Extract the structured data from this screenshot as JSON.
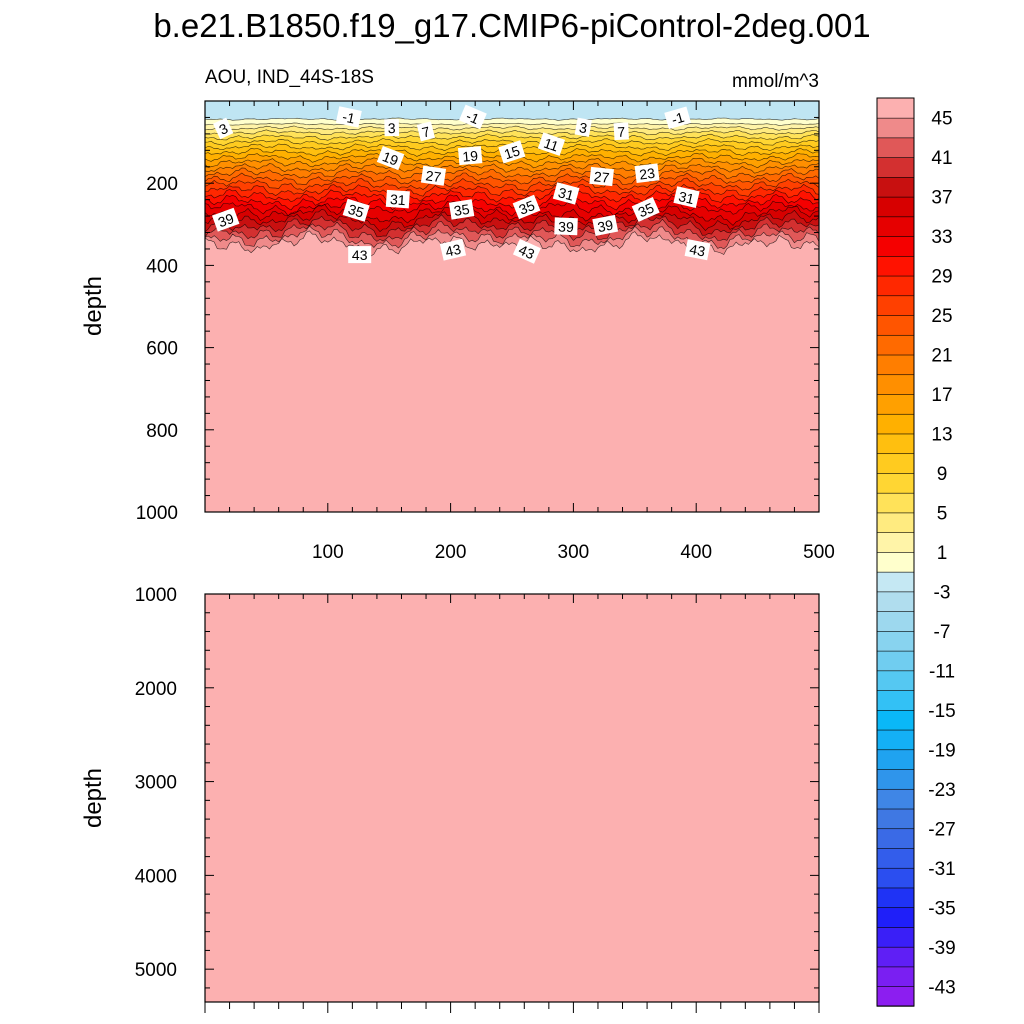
{
  "title": "b.e21.B1850.f19_g17.CMIP6-piControl-2deg.001",
  "chart_data": {
    "type": "contour",
    "variable": "AOU",
    "region": "IND_44S-18S",
    "left_string": "AOU, IND_44S-18S",
    "units": "mmol/m^3",
    "top_panel": {
      "xlabel": "",
      "ylabel": "depth",
      "xlim": [
        0,
        500
      ],
      "ylim": [
        1000,
        0
      ],
      "xticks": [
        100,
        200,
        300,
        400,
        500
      ],
      "yticks": [
        200,
        400,
        600,
        800,
        1000
      ],
      "contour_labels": [
        {
          "text": "3",
          "x": 15,
          "y": 68
        },
        {
          "text": "-1",
          "x": 117,
          "y": 40
        },
        {
          "text": "3",
          "x": 152,
          "y": 66
        },
        {
          "text": "7",
          "x": 180,
          "y": 75
        },
        {
          "text": "-1",
          "x": 218,
          "y": 40
        },
        {
          "text": "3",
          "x": 308,
          "y": 65
        },
        {
          "text": "7",
          "x": 339,
          "y": 75
        },
        {
          "text": "-1",
          "x": 385,
          "y": 42
        },
        {
          "text": "19",
          "x": 151,
          "y": 140
        },
        {
          "text": "27",
          "x": 186,
          "y": 183
        },
        {
          "text": "19",
          "x": 216,
          "y": 134
        },
        {
          "text": "15",
          "x": 250,
          "y": 125
        },
        {
          "text": "11",
          "x": 282,
          "y": 106
        },
        {
          "text": "27",
          "x": 323,
          "y": 185
        },
        {
          "text": "23",
          "x": 360,
          "y": 177
        },
        {
          "text": "39",
          "x": 17,
          "y": 290
        },
        {
          "text": "35",
          "x": 123,
          "y": 267
        },
        {
          "text": "31",
          "x": 157,
          "y": 240
        },
        {
          "text": "35",
          "x": 209,
          "y": 265
        },
        {
          "text": "35",
          "x": 262,
          "y": 259
        },
        {
          "text": "31",
          "x": 294,
          "y": 226
        },
        {
          "text": "39",
          "x": 294,
          "y": 306
        },
        {
          "text": "39",
          "x": 326,
          "y": 304
        },
        {
          "text": "35",
          "x": 359,
          "y": 265
        },
        {
          "text": "31",
          "x": 392,
          "y": 235
        },
        {
          "text": "43",
          "x": 126,
          "y": 375
        },
        {
          "text": "43",
          "x": 202,
          "y": 363
        },
        {
          "text": "43",
          "x": 262,
          "y": 367
        },
        {
          "text": "43",
          "x": 401,
          "y": 363
        }
      ]
    },
    "bottom_panel": {
      "ylabel": "depth",
      "xlim": [
        0,
        500
      ],
      "ylim": [
        5350,
        1000
      ],
      "yticks": [
        1000,
        2000,
        3000,
        4000,
        5000
      ]
    },
    "colorbar": {
      "orientation": "vertical",
      "levels": [
        -45,
        -43,
        -41,
        -39,
        -37,
        -35,
        -33,
        -31,
        -29,
        -27,
        -25,
        -23,
        -21,
        -19,
        -17,
        -15,
        -13,
        -11,
        -9,
        -7,
        -5,
        -3,
        -1,
        1,
        3,
        5,
        7,
        9,
        11,
        13,
        15,
        17,
        19,
        21,
        23,
        25,
        27,
        29,
        31,
        33,
        35,
        37,
        39,
        41,
        43,
        45
      ],
      "tick_labels": [
        "-43",
        "-39",
        "-35",
        "-31",
        "-27",
        "-23",
        "-19",
        "-15",
        "-11",
        "-7",
        "-3",
        "1",
        "5",
        "9",
        "13",
        "17",
        "21",
        "25",
        "29",
        "33",
        "37",
        "41",
        "45"
      ],
      "colors": [
        "#8c1ef0",
        "#7a1ff2",
        "#5f1ff5",
        "#3a1ff7",
        "#1f1ff9",
        "#1f33f5",
        "#2b4ef0",
        "#335deb",
        "#3a6ae6",
        "#3f78e3",
        "#3f86e6",
        "#2f95eb",
        "#1fa3f0",
        "#14b0f5",
        "#0ab8f7",
        "#33c1f5",
        "#55c8f2",
        "#70cdf0",
        "#88d3ef",
        "#9dd8ee",
        "#b0ddee",
        "#c5e8f3",
        "#ffffcc",
        "#fff4a8",
        "#ffeb80",
        "#ffe259",
        "#ffd633",
        "#ffcb1f",
        "#ffbf0f",
        "#ffb000",
        "#ffa000",
        "#ff8f00",
        "#ff7e00",
        "#ff6a00",
        "#ff5500",
        "#ff4000",
        "#ff2800",
        "#ff1200",
        "#f50000",
        "#e60000",
        "#d70000",
        "#c81010",
        "#d33030",
        "#e05858",
        "#ef8a8a",
        "#fcb0b0"
      ]
    }
  }
}
